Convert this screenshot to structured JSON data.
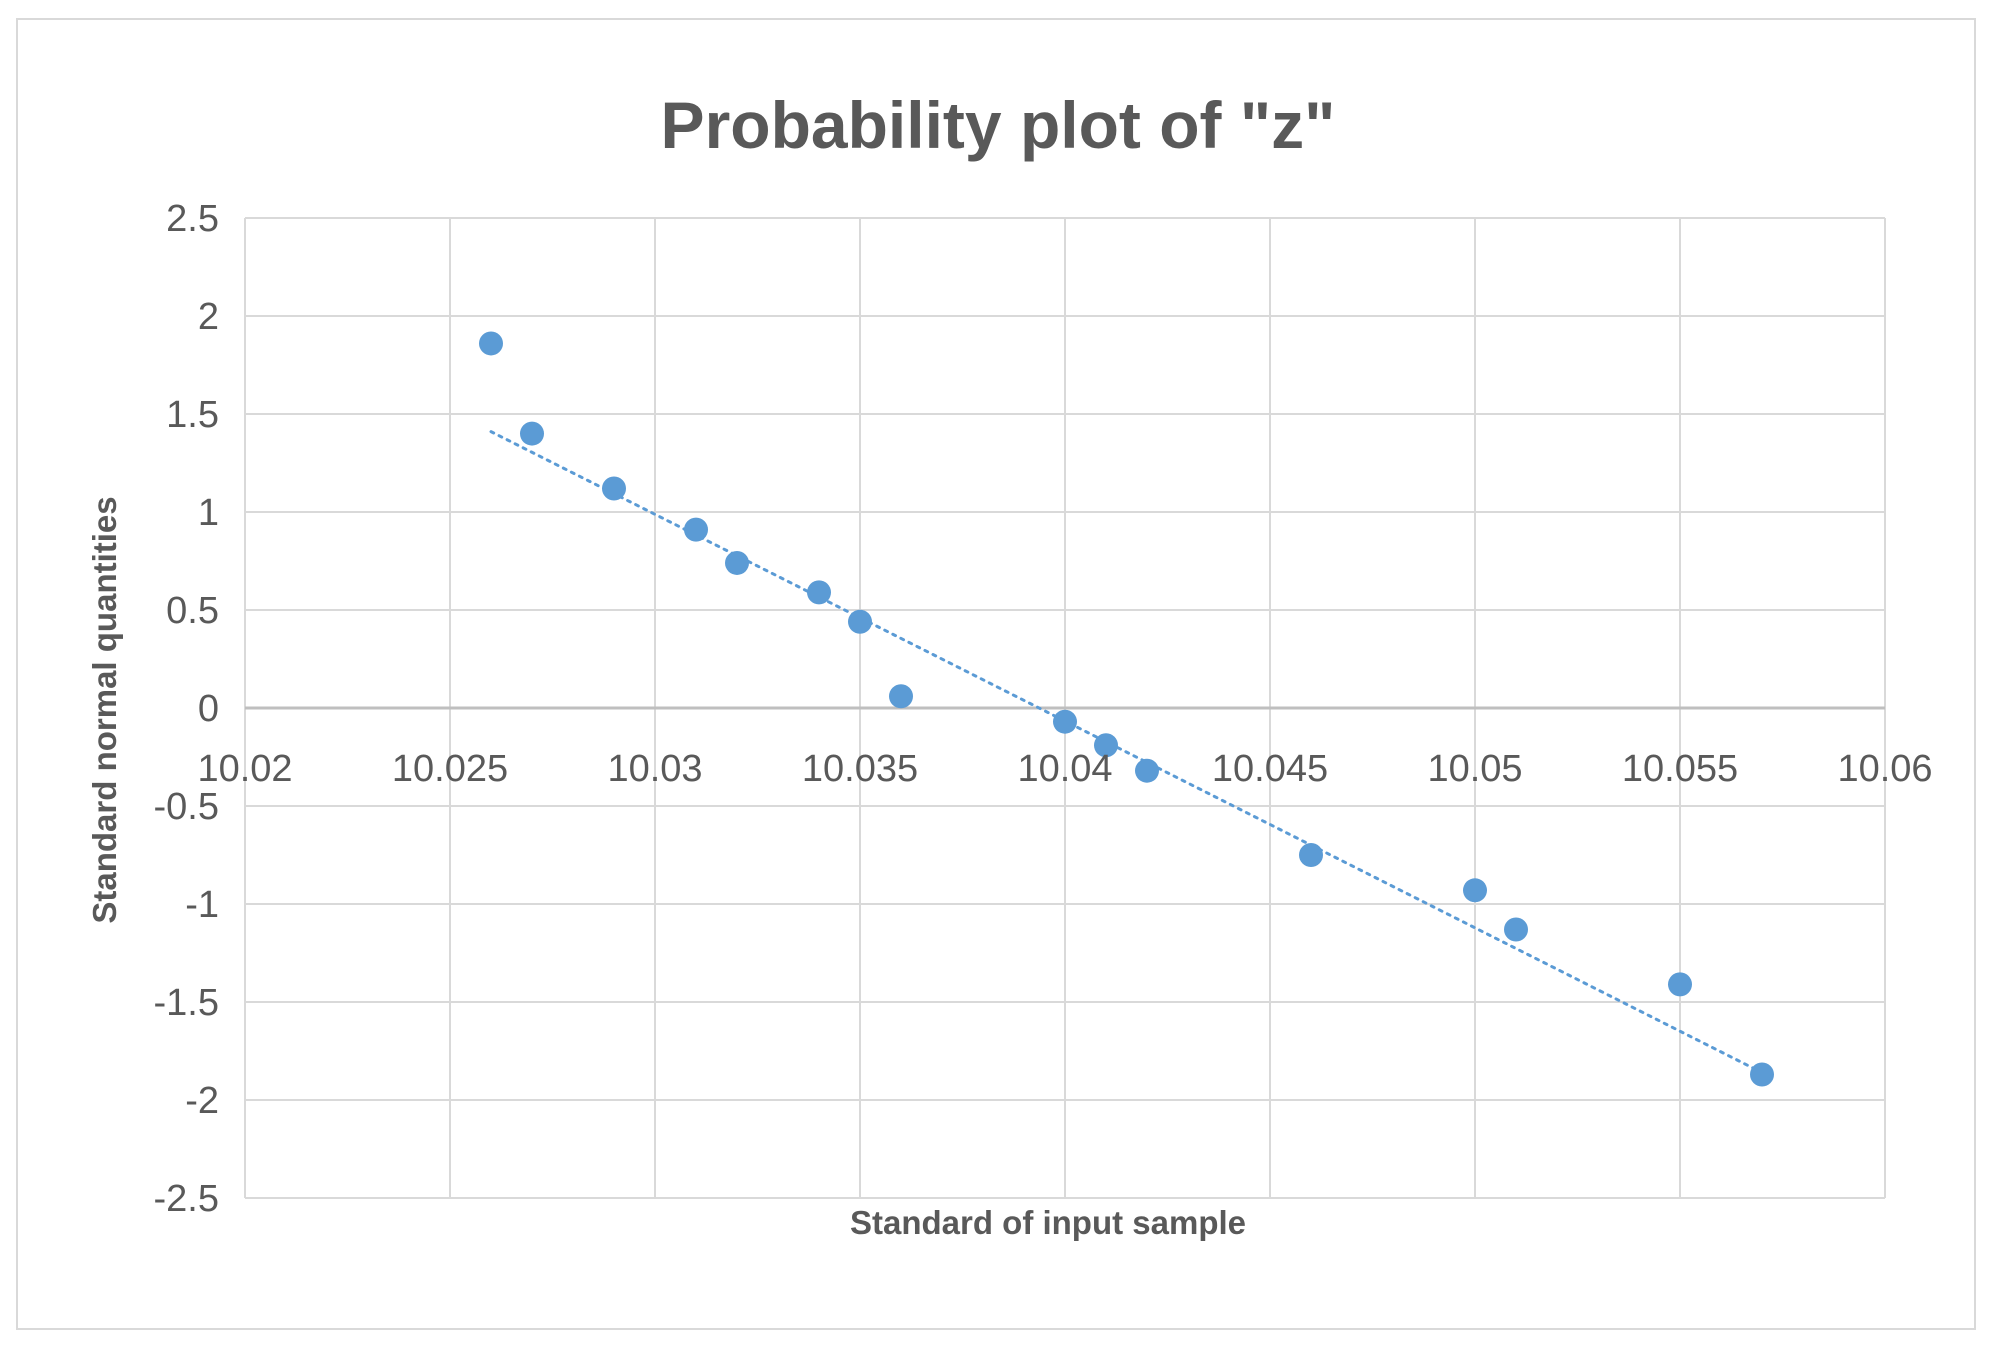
{
  "chart_data": {
    "type": "scatter",
    "title": "Probability plot of  \"z\"",
    "xlabel": "Standard of input sample",
    "ylabel": "Standard normal quantities",
    "xlim": [
      10.02,
      10.06
    ],
    "ylim": [
      -2.5,
      2.5
    ],
    "x_ticks": [
      "10.02",
      "10.025",
      "10.03",
      "10.035",
      "10.04",
      "10.045",
      "10.05",
      "10.055",
      "10.06"
    ],
    "y_ticks": [
      "2.5",
      "2",
      "1.5",
      "1",
      "0.5",
      "0",
      "-0.5",
      "-1",
      "-1.5",
      "-2",
      "-2.5"
    ],
    "grid": true,
    "legend": "none",
    "series": [
      {
        "points": [
          {
            "x": 10.026,
            "y": 1.86
          },
          {
            "x": 10.027,
            "y": 1.4
          },
          {
            "x": 10.029,
            "y": 1.12
          },
          {
            "x": 10.031,
            "y": 0.91
          },
          {
            "x": 10.032,
            "y": 0.74
          },
          {
            "x": 10.034,
            "y": 0.59
          },
          {
            "x": 10.035,
            "y": 0.44
          },
          {
            "x": 10.036,
            "y": 0.06
          },
          {
            "x": 10.04,
            "y": -0.07
          },
          {
            "x": 10.041,
            "y": -0.19
          },
          {
            "x": 10.042,
            "y": -0.32
          },
          {
            "x": 10.046,
            "y": -0.75
          },
          {
            "x": 10.05,
            "y": -0.93
          },
          {
            "x": 10.051,
            "y": -1.13
          },
          {
            "x": 10.055,
            "y": -1.41
          },
          {
            "x": 10.057,
            "y": -1.87
          }
        ],
        "color": "#5b9bd5"
      }
    ],
    "trendline": {
      "type": "linear",
      "style": "dotted",
      "color": "#5b9bd5",
      "start": {
        "x": 10.026,
        "y": 1.41
      },
      "end": {
        "x": 10.057,
        "y": -1.86
      }
    },
    "colors": {
      "grid": "#d9d9d9",
      "text": "#595959",
      "marker": "#5b9bd5"
    }
  }
}
